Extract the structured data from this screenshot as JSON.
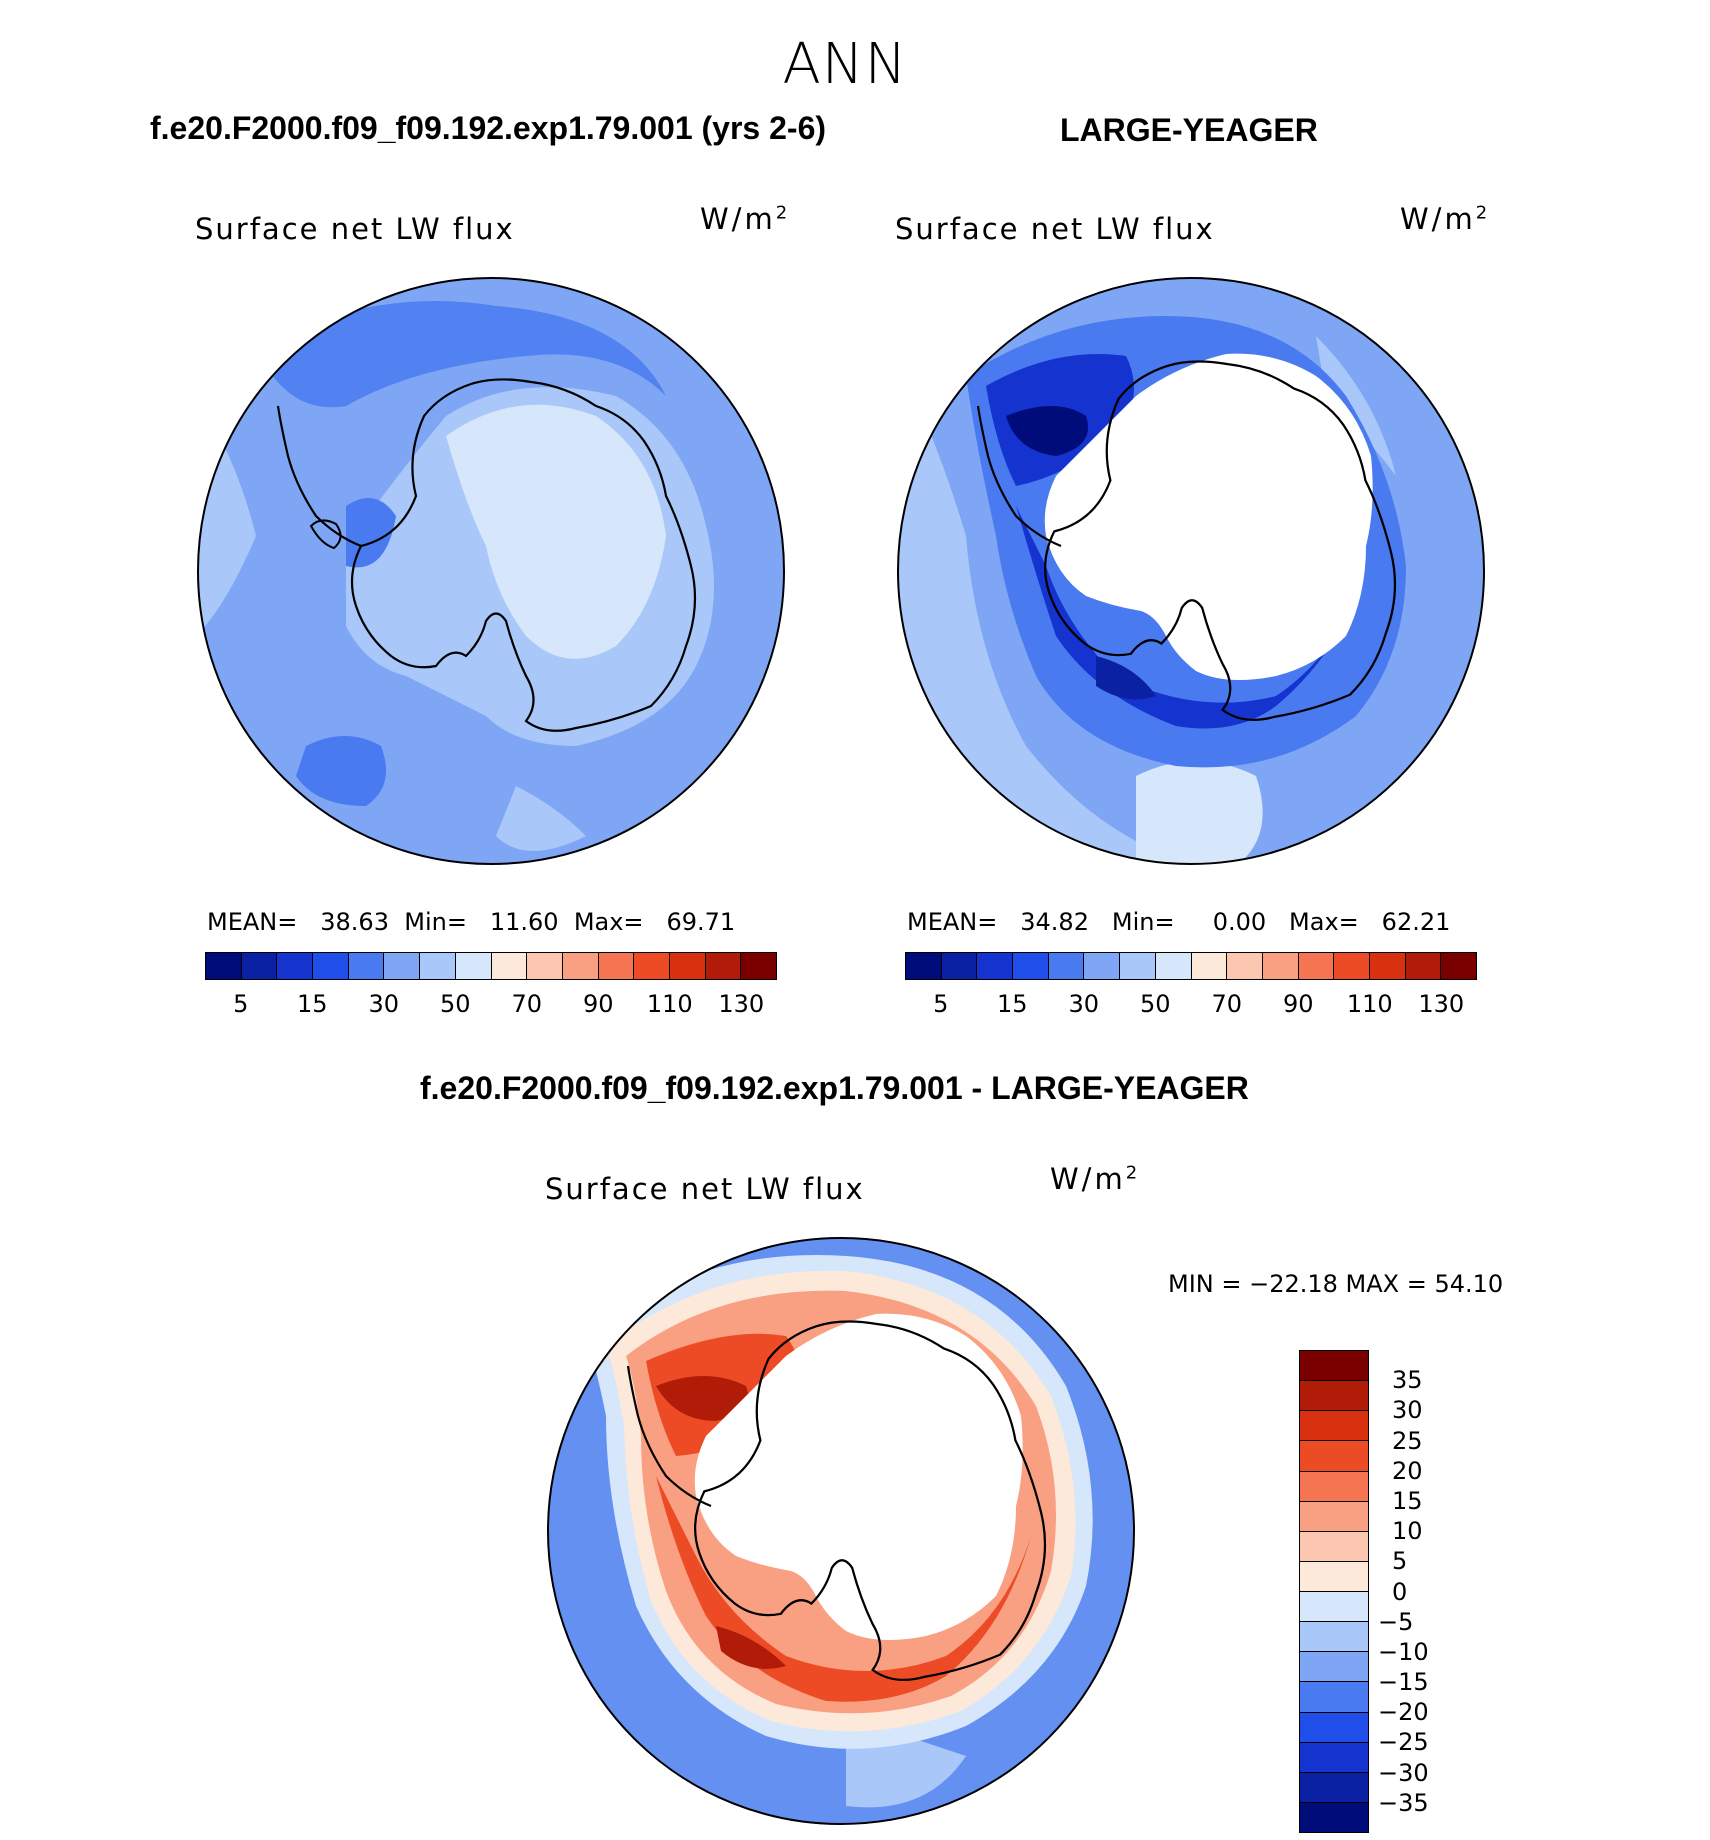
{
  "season": "ANN",
  "panels": {
    "test": {
      "case_title": "f.e20.F2000.f09_f09.192.exp1.79.001 (yrs 2-6)",
      "variable": "Surface net LW flux",
      "units_base": "W/m",
      "units_exp": "2",
      "stats": {
        "mean_label": "MEAN=",
        "mean": "38.63",
        "min_label": "Min=",
        "min": "11.60",
        "max_label": "Max=",
        "max": "69.71"
      }
    },
    "control": {
      "case_title": "LARGE-YEAGER",
      "variable": "Surface net LW flux",
      "units_base": "W/m",
      "units_exp": "2",
      "stats": {
        "mean_label": "MEAN=",
        "mean": "34.82",
        "min_label": "Min=",
        "min": "0.00",
        "max_label": "Max=",
        "max": "62.21"
      }
    },
    "diff": {
      "case_title": "f.e20.F2000.f09_f09.192.exp1.79.001 - LARGE-YEAGER",
      "variable": "Surface net LW flux",
      "units_base": "W/m",
      "units_exp": "2",
      "minmax": "MIN = −22.18 MAX =   54.10"
    }
  },
  "colorbar_abs": {
    "colors": [
      "#000c7a",
      "#0a21a4",
      "#1433cf",
      "#1f4fe8",
      "#4a7af0",
      "#7ea6f5",
      "#a9c7f8",
      "#d6e6fb",
      "#fde9d9",
      "#fcc7b1",
      "#f9a083",
      "#f57553",
      "#ec4b26",
      "#d9300f",
      "#b01c07",
      "#7a0000"
    ],
    "tick_labels": [
      "5",
      "15",
      "30",
      "50",
      "70",
      "90",
      "110",
      "130"
    ]
  },
  "colorbar_diff": {
    "colors": [
      "#7a0000",
      "#b01c07",
      "#d9300f",
      "#ec4b26",
      "#f57553",
      "#f9a083",
      "#fcc7b1",
      "#fde9d9",
      "#d6e6fb",
      "#a9c7f8",
      "#7ea6f5",
      "#4a7af0",
      "#1f4fe8",
      "#1433cf",
      "#0a21a4",
      "#000c7a"
    ],
    "tick_labels": [
      "35",
      "30",
      "25",
      "20",
      "15",
      "10",
      "5",
      "0",
      "−5",
      "−10",
      "−15",
      "−20",
      "−25",
      "−30",
      "−35"
    ]
  }
}
